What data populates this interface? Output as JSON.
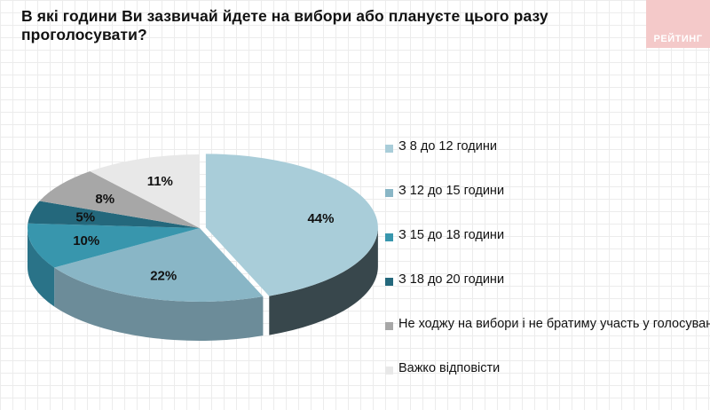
{
  "header": {
    "title": "В які години Ви зазвичай йдете на вибори або плануєте цього разу проголосувати?",
    "logo_text": "РЕЙТИНГ"
  },
  "chart_data": {
    "type": "pie",
    "title": "В які години Ви зазвичай йдете на вибори або плануєте цього разу проголосувати?",
    "style": "3d-exploded",
    "legend_position": "right",
    "categories": [
      "З 8 до 12 години",
      "З 12 до 15 години",
      "З 15 до 18 години",
      "З 18 до 20 години",
      "Не ходжу на вибори і не братиму участь у голосуванні",
      "Важко відповісти"
    ],
    "values": [
      44,
      22,
      10,
      5,
      8,
      11
    ],
    "data_labels": [
      "44%",
      "22%",
      "10%",
      "5%",
      "8%",
      "11%"
    ],
    "colors": [
      "#a9cdd9",
      "#89b6c6",
      "#3896ad",
      "#24687c",
      "#a7a7a7",
      "#e8e8e8"
    ],
    "side_colors": [
      "#38474c",
      "#6c8c99",
      "#2a7388",
      "#1b4f5e",
      "#7f7f7f",
      "#c8c8c8"
    ]
  }
}
